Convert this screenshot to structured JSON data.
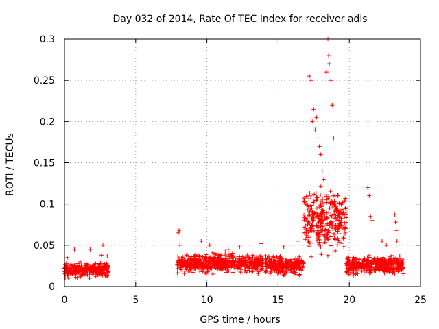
{
  "chart_data": {
    "type": "scatter",
    "title": "Day 032 of 2014, Rate Of TEC Index for receiver adis",
    "xlabel": "GPS time / hours",
    "ylabel": "ROTI / TECUs",
    "xlim": [
      0,
      25
    ],
    "ylim": [
      0,
      0.3
    ],
    "xticks": [
      "0",
      "5",
      "10",
      "15",
      "20",
      "25"
    ],
    "yticks": [
      "0",
      "0.05",
      "0.1",
      "0.15",
      "0.2",
      "0.25",
      "0.3"
    ],
    "grid": true,
    "marker": "plus",
    "color": "#ff0000",
    "series": [
      {
        "name": "ROTI",
        "segments": [
          {
            "x_start": 0.0,
            "x_end": 3.1,
            "baseline": 0.015,
            "spread": 0.012
          },
          {
            "x_start": 7.9,
            "x_end": 13.9,
            "baseline": 0.022,
            "spread": 0.015
          },
          {
            "x_start": 14.1,
            "x_end": 16.8,
            "baseline": 0.02,
            "spread": 0.014
          },
          {
            "x_start": 16.8,
            "x_end": 19.8,
            "baseline": 0.06,
            "spread": 0.05
          },
          {
            "x_start": 19.8,
            "x_end": 23.8,
            "baseline": 0.02,
            "spread": 0.014
          }
        ],
        "points": [
          [
            0.2,
            0.035
          ],
          [
            0.7,
            0.045
          ],
          [
            1.1,
            0.03
          ],
          [
            1.8,
            0.045
          ],
          [
            2.6,
            0.038
          ],
          [
            2.7,
            0.05
          ],
          [
            3.0,
            0.037
          ],
          [
            8.0,
            0.065
          ],
          [
            8.05,
            0.068
          ],
          [
            8.1,
            0.05
          ],
          [
            9.6,
            0.055
          ],
          [
            10.2,
            0.05
          ],
          [
            11.5,
            0.045
          ],
          [
            12.3,
            0.048
          ],
          [
            13.8,
            0.052
          ],
          [
            15.4,
            0.048
          ],
          [
            16.4,
            0.055
          ],
          [
            17.2,
            0.255
          ],
          [
            17.3,
            0.25
          ],
          [
            17.4,
            0.2
          ],
          [
            17.5,
            0.215
          ],
          [
            17.6,
            0.19
          ],
          [
            17.7,
            0.205
          ],
          [
            17.8,
            0.18
          ],
          [
            17.9,
            0.17
          ],
          [
            18.0,
            0.16
          ],
          [
            18.1,
            0.14
          ],
          [
            18.2,
            0.13
          ],
          [
            18.4,
            0.26
          ],
          [
            18.5,
            0.3
          ],
          [
            18.55,
            0.28
          ],
          [
            18.6,
            0.27
          ],
          [
            18.7,
            0.25
          ],
          [
            18.8,
            0.22
          ],
          [
            18.9,
            0.18
          ],
          [
            19.0,
            0.14
          ],
          [
            19.2,
            0.11
          ],
          [
            19.4,
            0.09
          ],
          [
            21.3,
            0.12
          ],
          [
            21.4,
            0.11
          ],
          [
            21.5,
            0.085
          ],
          [
            21.6,
            0.08
          ],
          [
            22.3,
            0.055
          ],
          [
            22.6,
            0.05
          ],
          [
            23.2,
            0.087
          ],
          [
            23.25,
            0.078
          ],
          [
            23.3,
            0.068
          ],
          [
            23.35,
            0.055
          ]
        ]
      }
    ]
  }
}
